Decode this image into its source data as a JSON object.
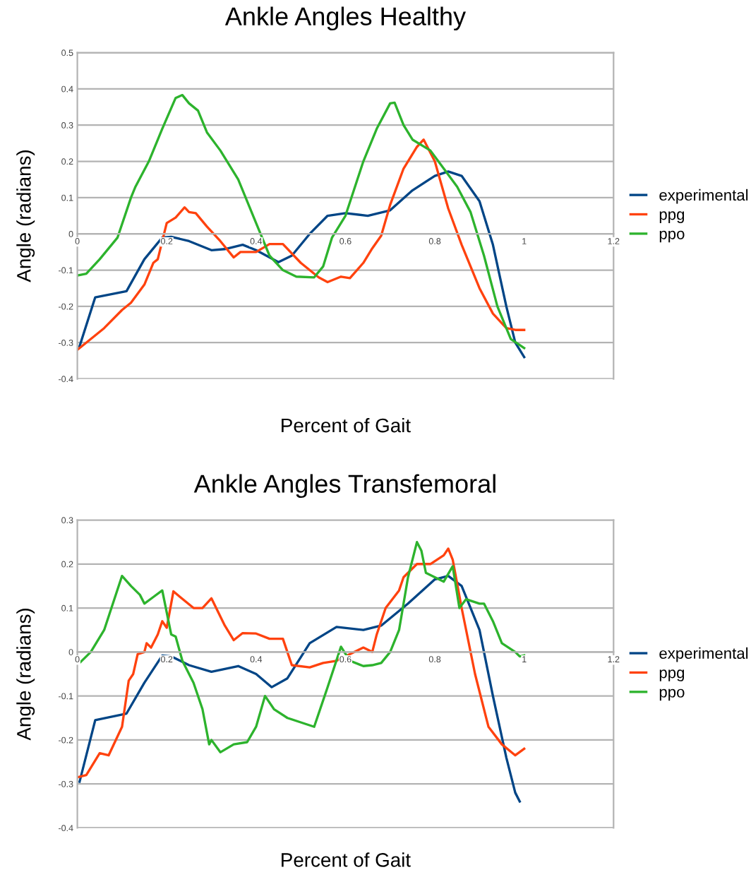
{
  "chart_data": [
    {
      "type": "line",
      "title": "Ankle Angles Healthy",
      "xlabel": "Percent of Gait",
      "ylabel": "Angle (radians)",
      "xlim": [
        0,
        1.2
      ],
      "xticks": [
        0,
        0.2,
        0.4,
        0.6,
        0.8,
        1,
        1.2
      ],
      "ylim": [
        -0.4,
        0.5
      ],
      "yticks": [
        -0.4,
        -0.3,
        -0.2,
        -0.1,
        0,
        0.1,
        0.2,
        0.3,
        0.4,
        0.5
      ],
      "grid": "y",
      "legend": "right",
      "series": [
        {
          "name": "experimental",
          "color": "#004586",
          "x": [
            0.005,
            0.04,
            0.11,
            0.15,
            0.19,
            0.21,
            0.25,
            0.3,
            0.33,
            0.37,
            0.4,
            0.45,
            0.48,
            0.52,
            0.56,
            0.6,
            0.65,
            0.7,
            0.75,
            0.8,
            0.83,
            0.86,
            0.9,
            0.93,
            0.96,
            0.98,
            1.0
          ],
          "values": [
            -0.31,
            -0.175,
            -0.158,
            -0.07,
            -0.01,
            -0.008,
            -0.02,
            -0.045,
            -0.042,
            -0.03,
            -0.045,
            -0.078,
            -0.06,
            0,
            0.05,
            0.057,
            0.05,
            0.065,
            0.12,
            0.16,
            0.172,
            0.16,
            0.09,
            -0.03,
            -0.2,
            -0.3,
            -0.34
          ]
        },
        {
          "name": "ppg",
          "color": "#ff420e",
          "x": [
            0,
            0.02,
            0.06,
            0.1,
            0.12,
            0.15,
            0.17,
            0.18,
            0.2,
            0.22,
            0.24,
            0.25,
            0.265,
            0.29,
            0.32,
            0.35,
            0.365,
            0.4,
            0.43,
            0.46,
            0.5,
            0.54,
            0.56,
            0.59,
            0.61,
            0.64,
            0.66,
            0.68,
            0.7,
            0.73,
            0.76,
            0.775,
            0.8,
            0.83,
            0.86,
            0.9,
            0.93,
            0.96,
            0.98,
            1.0
          ],
          "values": [
            -0.32,
            -0.3,
            -0.26,
            -0.21,
            -0.19,
            -0.14,
            -0.08,
            -0.07,
            0.03,
            0.045,
            0.073,
            0.06,
            0.057,
            0.02,
            -0.02,
            -0.065,
            -0.05,
            -0.05,
            -0.028,
            -0.028,
            -0.08,
            -0.12,
            -0.133,
            -0.118,
            -0.122,
            -0.08,
            -0.04,
            -0.005,
            0.08,
            0.18,
            0.24,
            0.26,
            0.2,
            0.07,
            -0.03,
            -0.15,
            -0.22,
            -0.26,
            -0.265,
            -0.265
          ]
        },
        {
          "name": "ppo",
          "color": "#2db32d",
          "x": [
            0,
            0.02,
            0.05,
            0.09,
            0.12,
            0.13,
            0.16,
            0.19,
            0.22,
            0.235,
            0.25,
            0.27,
            0.29,
            0.32,
            0.36,
            0.4,
            0.43,
            0.46,
            0.49,
            0.53,
            0.55,
            0.57,
            0.6,
            0.64,
            0.67,
            0.7,
            0.71,
            0.73,
            0.75,
            0.79,
            0.82,
            0.85,
            0.88,
            0.91,
            0.94,
            0.97,
            1.0
          ],
          "values": [
            -0.115,
            -0.11,
            -0.07,
            -0.01,
            0.1,
            0.13,
            0.2,
            0.29,
            0.375,
            0.383,
            0.36,
            0.34,
            0.28,
            0.23,
            0.15,
            0.03,
            -0.06,
            -0.1,
            -0.118,
            -0.12,
            -0.09,
            -0.01,
            0.05,
            0.2,
            0.29,
            0.36,
            0.362,
            0.3,
            0.26,
            0.23,
            0.18,
            0.13,
            0.06,
            -0.06,
            -0.2,
            -0.29,
            -0.315
          ]
        }
      ]
    },
    {
      "type": "line",
      "title": "Ankle Angles Transfemoral",
      "xlabel": "Percent of Gait",
      "ylabel": "Angle (radians)",
      "xlim": [
        0,
        1.2
      ],
      "xticks": [
        0,
        0.2,
        0.4,
        0.6,
        0.8,
        1,
        1.2
      ],
      "ylim": [
        -0.4,
        0.3
      ],
      "yticks": [
        -0.4,
        -0.3,
        -0.2,
        -0.1,
        0,
        0.1,
        0.2,
        0.3
      ],
      "grid": "y",
      "legend": "right",
      "series": [
        {
          "name": "experimental",
          "color": "#004586",
          "x": [
            0.005,
            0.04,
            0.11,
            0.15,
            0.19,
            0.21,
            0.25,
            0.3,
            0.36,
            0.4,
            0.435,
            0.47,
            0.52,
            0.58,
            0.64,
            0.68,
            0.74,
            0.8,
            0.83,
            0.86,
            0.9,
            0.93,
            0.96,
            0.98,
            0.99
          ],
          "values": [
            -0.295,
            -0.155,
            -0.14,
            -0.07,
            -0.008,
            -0.01,
            -0.03,
            -0.045,
            -0.032,
            -0.05,
            -0.08,
            -0.06,
            0.02,
            0.057,
            0.05,
            0.06,
            0.11,
            0.165,
            0.173,
            0.15,
            0.05,
            -0.1,
            -0.24,
            -0.32,
            -0.34
          ]
        },
        {
          "name": "ppg",
          "color": "#ff420e",
          "x": [
            0,
            0.02,
            0.05,
            0.07,
            0.1,
            0.115,
            0.125,
            0.135,
            0.15,
            0.155,
            0.165,
            0.18,
            0.19,
            0.2,
            0.215,
            0.23,
            0.26,
            0.28,
            0.3,
            0.33,
            0.35,
            0.37,
            0.4,
            0.43,
            0.46,
            0.48,
            0.52,
            0.55,
            0.58,
            0.6,
            0.64,
            0.66,
            0.67,
            0.69,
            0.72,
            0.73,
            0.76,
            0.79,
            0.82,
            0.83,
            0.84,
            0.86,
            0.89,
            0.92,
            0.95,
            0.98,
            1.0
          ],
          "values": [
            -0.285,
            -0.28,
            -0.23,
            -0.235,
            -0.17,
            -0.065,
            -0.05,
            -0.005,
            0,
            0.02,
            0.01,
            0.04,
            0.07,
            0.055,
            0.138,
            0.125,
            0.1,
            0.1,
            0.122,
            0.06,
            0.027,
            0.043,
            0.042,
            0.03,
            0.03,
            -0.03,
            -0.035,
            -0.025,
            -0.02,
            -0.01,
            0.01,
            0,
            0.04,
            0.1,
            0.14,
            0.17,
            0.2,
            0.2,
            0.22,
            0.235,
            0.21,
            0.1,
            -0.05,
            -0.17,
            -0.21,
            -0.235,
            -0.22
          ]
        },
        {
          "name": "ppo",
          "color": "#2db32d",
          "x": [
            0,
            0.005,
            0.03,
            0.06,
            0.1,
            0.12,
            0.14,
            0.15,
            0.17,
            0.19,
            0.21,
            0.22,
            0.235,
            0.26,
            0.28,
            0.295,
            0.3,
            0.32,
            0.35,
            0.38,
            0.4,
            0.42,
            0.44,
            0.47,
            0.5,
            0.53,
            0.56,
            0.59,
            0.61,
            0.64,
            0.66,
            0.68,
            0.7,
            0.72,
            0.74,
            0.76,
            0.77,
            0.78,
            0.8,
            0.82,
            0.84,
            0.855,
            0.87,
            0.9,
            0.91,
            0.93,
            0.95,
            0.98,
            0.99,
            1.0
          ],
          "values": [
            -0.01,
            -0.025,
            0,
            0.05,
            0.173,
            0.15,
            0.13,
            0.11,
            0.125,
            0.14,
            0.04,
            0.035,
            -0.02,
            -0.07,
            -0.13,
            -0.21,
            -0.2,
            -0.228,
            -0.21,
            -0.205,
            -0.17,
            -0.1,
            -0.13,
            -0.15,
            -0.16,
            -0.17,
            -0.08,
            0.012,
            -0.02,
            -0.032,
            -0.03,
            -0.025,
            0,
            0.05,
            0.17,
            0.25,
            0.23,
            0.18,
            0.17,
            0.16,
            0.195,
            0.1,
            0.12,
            0.11,
            0.11,
            0.07,
            0.02,
            0,
            -0.01,
            -0.008
          ]
        }
      ]
    }
  ]
}
